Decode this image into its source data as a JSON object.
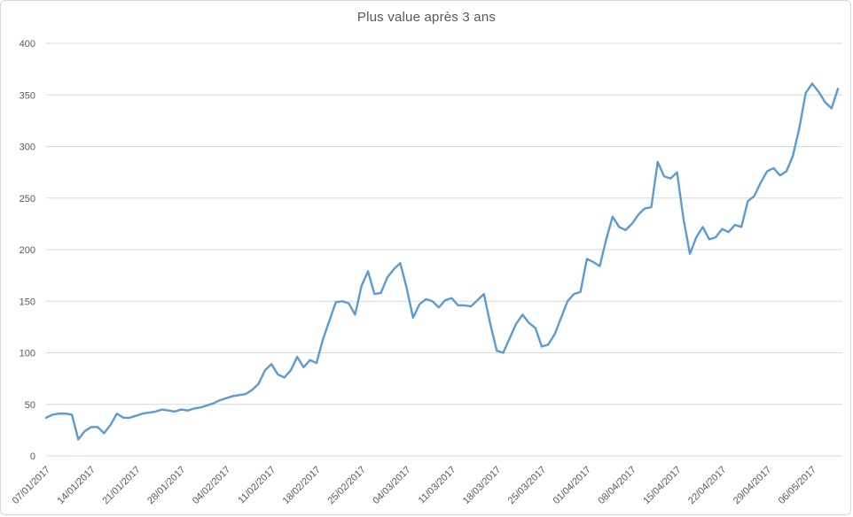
{
  "chart": {
    "frame": "excel-style-chart",
    "colors": {
      "line": "#5B9BD5",
      "grid": "#D9D9D9",
      "text": "#595959",
      "background": "#FFFFFF",
      "border": "#D7D7D7"
    }
  },
  "chart_data": {
    "type": "line",
    "title": "Plus value après 3 ans",
    "xlabel": "",
    "ylabel": "",
    "ylim": [
      0,
      400
    ],
    "y_ticks": [
      0,
      50,
      100,
      150,
      200,
      250,
      300,
      350,
      400
    ],
    "grid": true,
    "legend": false,
    "x_frequency": "daily",
    "x_tick_labels": [
      "07/01/2017",
      "14/01/2017",
      "21/01/2017",
      "28/01/2017",
      "04/02/2017",
      "11/02/2017",
      "18/02/2017",
      "25/02/2017",
      "04/03/2017",
      "11/03/2017",
      "18/03/2017",
      "25/03/2017",
      "01/04/2017",
      "08/04/2017",
      "15/04/2017",
      "22/04/2017",
      "29/04/2017",
      "06/05/2017"
    ],
    "series": [
      {
        "name": "Plus value après 3 ans",
        "values": [
          37,
          40,
          41,
          41,
          40,
          16,
          24,
          28,
          28,
          22,
          30,
          41,
          37,
          37,
          39,
          41,
          42,
          43,
          45,
          44,
          43,
          45,
          44,
          46,
          47,
          49,
          51,
          54,
          56,
          58,
          59,
          60,
          64,
          70,
          83,
          89,
          79,
          76,
          83,
          96,
          86,
          93,
          90,
          113,
          131,
          149,
          150,
          148,
          137,
          165,
          179,
          157,
          158,
          173,
          181,
          187,
          163,
          134,
          147,
          152,
          150,
          144,
          151,
          153,
          146,
          146,
          145,
          151,
          157,
          128,
          102,
          100,
          114,
          128,
          137,
          129,
          124,
          106,
          108,
          118,
          134,
          150,
          157,
          159,
          191,
          188,
          184,
          210,
          232,
          222,
          219,
          225,
          234,
          240,
          241,
          285,
          271,
          269,
          275,
          230,
          196,
          212,
          222,
          210,
          212,
          220,
          217,
          224,
          222,
          247,
          252,
          265,
          276,
          279,
          272,
          276,
          291,
          318,
          352,
          361,
          353,
          343,
          337,
          356
        ]
      }
    ]
  }
}
